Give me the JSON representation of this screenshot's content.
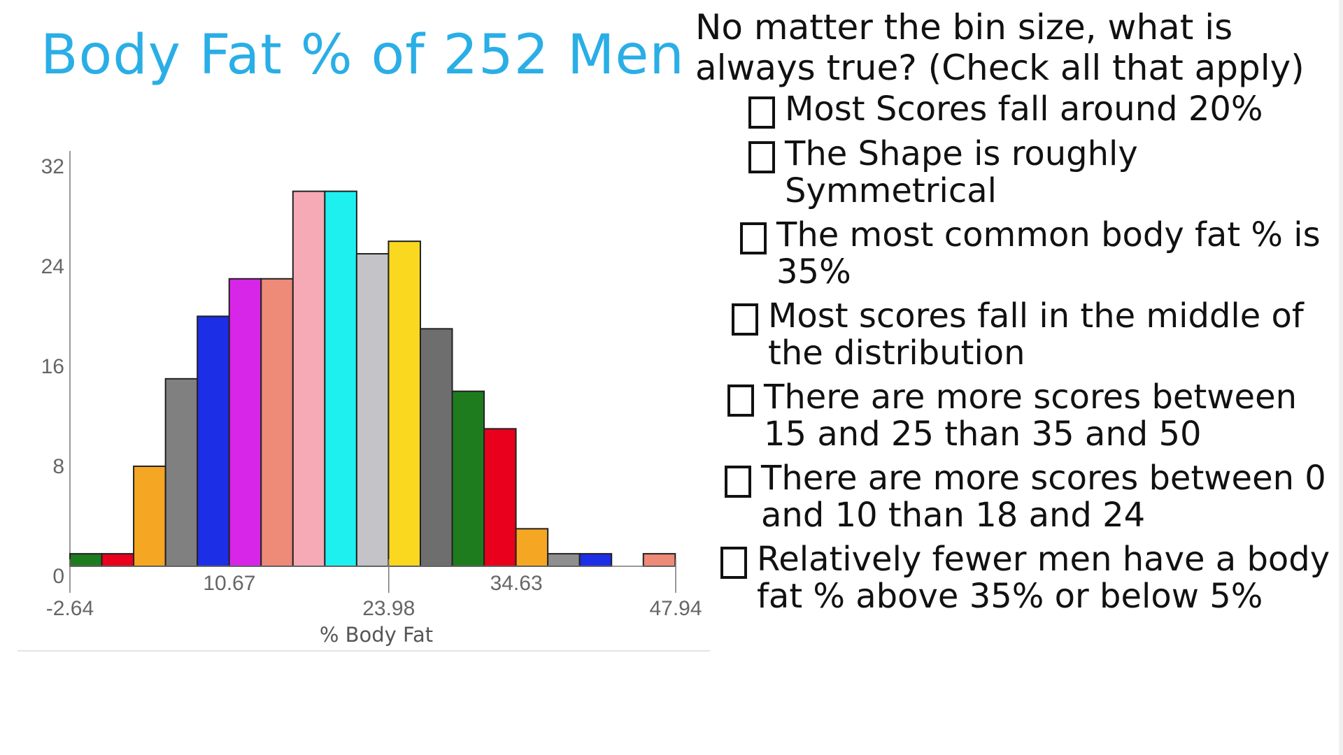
{
  "question": {
    "text": "No matter the bin size, what is always true? (Check all that apply)",
    "options": [
      "Most Scores fall around 20%",
      "The Shape is roughly Symmetrical",
      "The most common body fat % is 35%",
      "Most scores fall in the middle of the distribution",
      "There are more scores between 15 and 25 than 35 and 50",
      "There are more scores between 0 and 10 than 18 and 24",
      "Relatively fewer men have a body fat % above 35% or below 5%"
    ]
  },
  "chart_data": {
    "type": "bar",
    "title": "Body Fat % of 252 Men",
    "xlabel": "% Body Fat",
    "ylabel": "",
    "x_ticks_upper": [
      "10.67",
      "34.63"
    ],
    "x_ticks_lower": [
      "-2.64",
      "23.98",
      "47.94"
    ],
    "y_ticks": [
      "0",
      "8",
      "16",
      "24",
      "32"
    ],
    "ylim": [
      0,
      33
    ],
    "xlim": [
      -2.64,
      47.94
    ],
    "bin_width": 2.66,
    "values": [
      1,
      1,
      8,
      15,
      20,
      23,
      23,
      30,
      30,
      25,
      26,
      19,
      14,
      11,
      3,
      1,
      1,
      0,
      1
    ],
    "colors": [
      "#1e7b1e",
      "#e8001c",
      "#f5a623",
      "#808080",
      "#1c2ee6",
      "#d726e8",
      "#ee8a78",
      "#f6aab5",
      "#1ef0f0",
      "#c4c4c8",
      "#fbd820",
      "#6e6e6e",
      "#1e7b1e",
      "#e8001c",
      "#f5a623",
      "#8f8f8f",
      "#1c2ee6",
      "#d726e8",
      "#ee8a78"
    ]
  }
}
